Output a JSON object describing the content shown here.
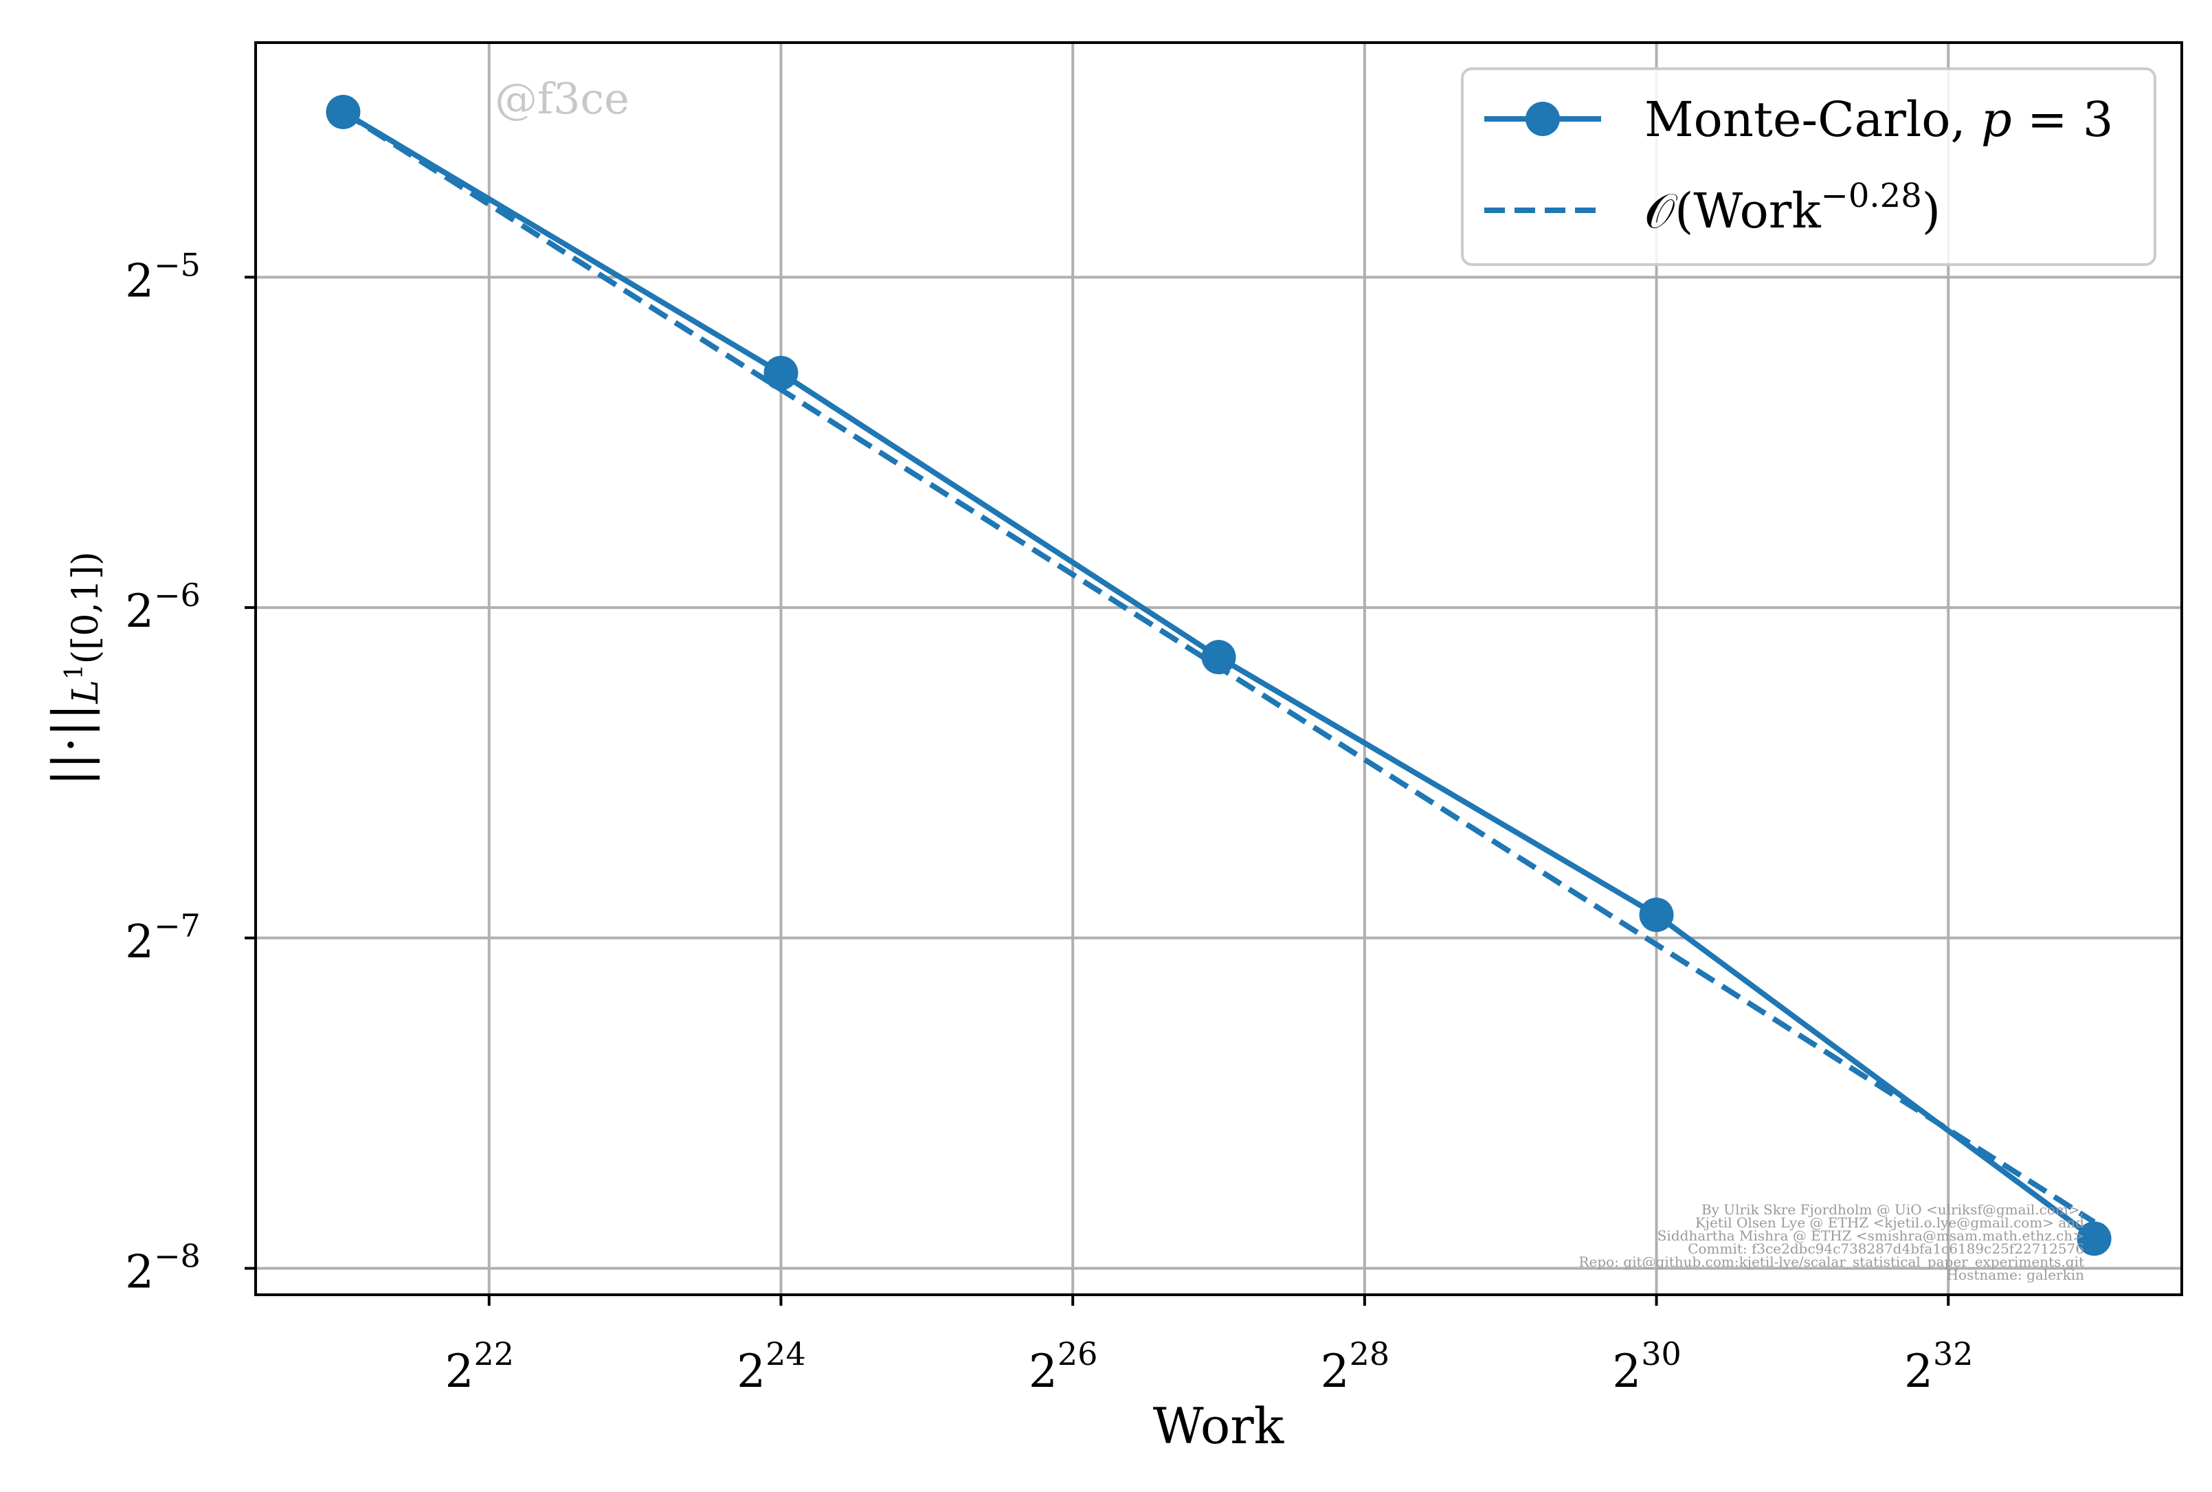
{
  "chart_data": {
    "type": "line",
    "scale": {
      "x": "log2",
      "y": "log2"
    },
    "xlabel": "Work",
    "ylabel": "||·||",
    "ylabel_sub": "L",
    "ylabel_sub_sup": "1",
    "ylabel_sub_tail": "([0,1])",
    "xlim_exp": [
      20.4,
      33.6
    ],
    "ylim_exp": [
      -8.08,
      -4.29
    ],
    "x_ticks": [
      {
        "base": "2",
        "exp": "22",
        "value_exp": 22
      },
      {
        "base": "2",
        "exp": "24",
        "value_exp": 24
      },
      {
        "base": "2",
        "exp": "26",
        "value_exp": 26
      },
      {
        "base": "2",
        "exp": "28",
        "value_exp": 28
      },
      {
        "base": "2",
        "exp": "30",
        "value_exp": 30
      },
      {
        "base": "2",
        "exp": "32",
        "value_exp": 32
      }
    ],
    "y_ticks": [
      {
        "base": "2",
        "exp": "−5",
        "value_exp": -5
      },
      {
        "base": "2",
        "exp": "−6",
        "value_exp": -6
      },
      {
        "base": "2",
        "exp": "−7",
        "value_exp": -7
      },
      {
        "base": "2",
        "exp": "−8",
        "value_exp": -8
      }
    ],
    "grid": true,
    "legend_position": "top-right",
    "series": [
      {
        "name": "Monte-Carlo, p = 3",
        "legend_main": "Monte-Carlo, ",
        "legend_var": "p",
        "legend_tail": " = 3",
        "style": "solid-marker",
        "color": "#1f77b4",
        "x_exp": [
          21,
          24,
          27,
          30,
          33
        ],
        "y_exp": [
          -4.5,
          -5.29,
          -6.15,
          -6.93,
          -7.91
        ]
      },
      {
        "name": "O(Work^-0.28)",
        "legend_main": "𝒪(Work",
        "legend_sup": "−0.28",
        "legend_tail": ")",
        "style": "dashed",
        "color": "#1f77b4",
        "x_exp": [
          21,
          33
        ],
        "y_exp": [
          -4.5,
          -7.86
        ]
      }
    ],
    "watermark": "@f3ce",
    "credits": [
      "By Ulrik Skre Fjordholm @ UiO <ulriksf@gmail.com>,",
      "Kjetil Olsen Lye @ ETHZ <kjetil.o.lye@gmail.com> and",
      "Siddhartha Mishra @ ETHZ <smishra@msam.math.ethz.ch>",
      "Commit: f3ce2dbc94c738287d4bfa1c6189c25f22712576",
      "Repo: git@github.com:kjetil-lye/scalar_statistical_paper_experiments.git",
      "Hostname: galerkin"
    ]
  }
}
